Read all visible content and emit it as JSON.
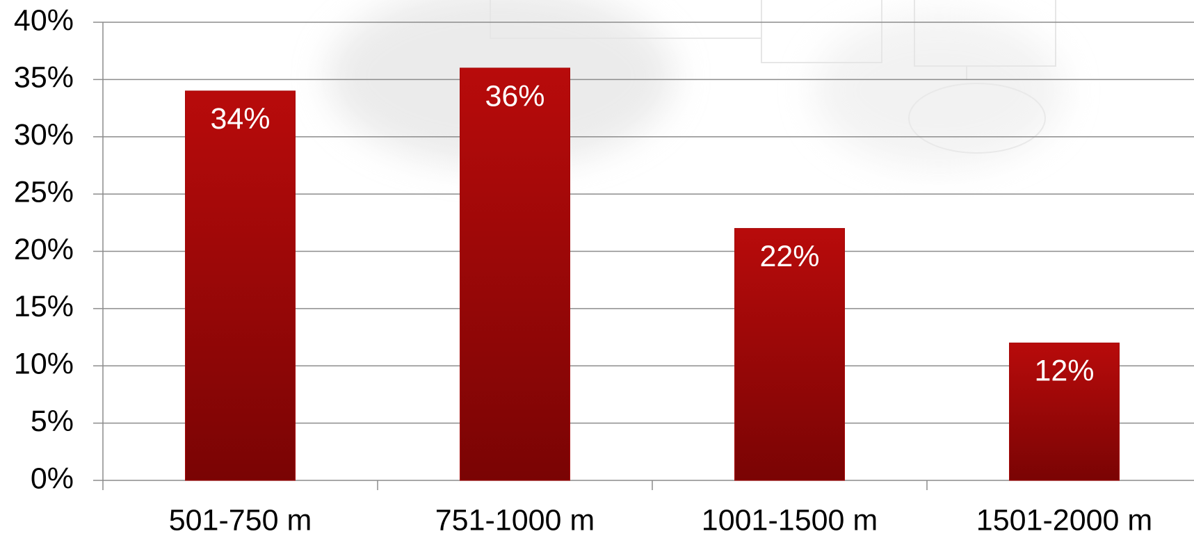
{
  "chart_data": {
    "type": "bar",
    "categories": [
      "501-750 m",
      "751-1000 m",
      "1001-1500 m",
      "1501-2000 m"
    ],
    "values": [
      34,
      36,
      22,
      12
    ],
    "value_labels": [
      "34%",
      "36%",
      "22%",
      "12%"
    ],
    "color": "#a50808",
    "ylim": [
      0,
      40
    ],
    "yticks": [
      {
        "value": 0,
        "label": "0%"
      },
      {
        "value": 5,
        "label": "5%"
      },
      {
        "value": 10,
        "label": "10%"
      },
      {
        "value": 15,
        "label": "15%"
      },
      {
        "value": 20,
        "label": "20%"
      },
      {
        "value": 25,
        "label": "25%"
      },
      {
        "value": 30,
        "label": "30%"
      },
      {
        "value": 35,
        "label": "35%"
      },
      {
        "value": 40,
        "label": "40%"
      }
    ],
    "grid": true
  }
}
